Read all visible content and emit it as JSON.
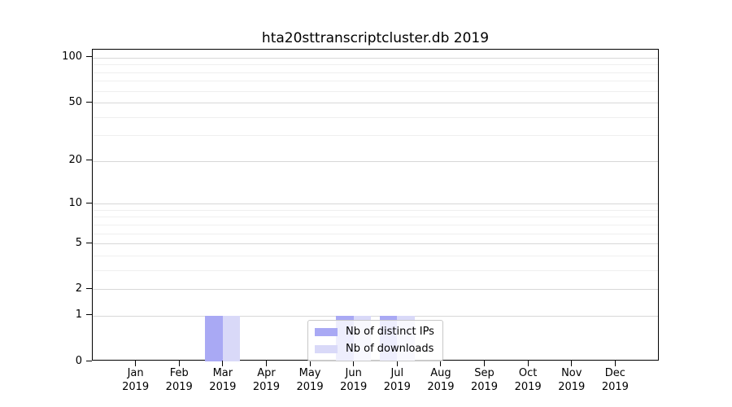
{
  "chart_data": {
    "type": "bar",
    "title": "hta20sttranscriptcluster.db 2019",
    "categories": [
      "Jan 2019",
      "Feb 2019",
      "Mar 2019",
      "Apr 2019",
      "May 2019",
      "Jun 2019",
      "Jul 2019",
      "Aug 2019",
      "Sep 2019",
      "Oct 2019",
      "Nov 2019",
      "Dec 2019"
    ],
    "series": [
      {
        "name": "Nb of distinct IPs",
        "color": "#a9a9f4",
        "values": [
          0,
          0,
          1,
          0,
          0,
          1,
          1,
          0,
          0,
          0,
          0,
          0
        ]
      },
      {
        "name": "Nb of downloads",
        "color": "#d9d9f8",
        "values": [
          0,
          0,
          1,
          0,
          0,
          1,
          1,
          0,
          0,
          0,
          0,
          0
        ]
      }
    ],
    "yscale": "log1p",
    "yticks": [
      0,
      1,
      2,
      5,
      10,
      20,
      50,
      100
    ],
    "ylim": [
      0,
      113
    ],
    "xlabel": "",
    "ylabel": "",
    "grid": true,
    "legend_position": "inside lower center"
  },
  "palette": {
    "background": "#ffffff",
    "axis": "#000000",
    "grid_major": "#d8d8d8",
    "grid_minor": "#efefef",
    "legend_border": "#c8c8c8",
    "legend_background": "rgba(255,255,255,0.8)"
  }
}
